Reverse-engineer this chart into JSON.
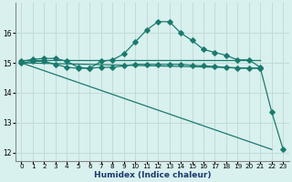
{
  "xlabel": "Humidex (Indice chaleur)",
  "xlim": [
    -0.5,
    23.5
  ],
  "ylim": [
    11.7,
    17.0
  ],
  "yticks": [
    12,
    13,
    14,
    15,
    16
  ],
  "xticks": [
    0,
    1,
    2,
    3,
    4,
    5,
    6,
    7,
    8,
    9,
    10,
    11,
    12,
    13,
    14,
    15,
    16,
    17,
    18,
    19,
    20,
    21,
    22,
    23
  ],
  "background_color": "#d8f0ee",
  "grid_color": "#c0dcd8",
  "line_color": "#1a7a6e",
  "series1_x": [
    0,
    1,
    2,
    3,
    4,
    5,
    6,
    7,
    8,
    9,
    10,
    11,
    12,
    13,
    14,
    15,
    16,
    17,
    18,
    19,
    20,
    21
  ],
  "series1_y": [
    15.05,
    15.12,
    15.15,
    15.15,
    15.05,
    14.85,
    14.82,
    15.05,
    15.1,
    15.3,
    15.7,
    16.1,
    16.38,
    16.38,
    16.0,
    15.75,
    15.45,
    15.35,
    15.25,
    15.1,
    15.1,
    14.85
  ],
  "series2_x": [
    0,
    21
  ],
  "series2_y": [
    15.1,
    15.1
  ],
  "series3_x": [
    0,
    1,
    2,
    3,
    4,
    5,
    6,
    7,
    8,
    9,
    10,
    11,
    12,
    13,
    14,
    15,
    16,
    17,
    18,
    19,
    20,
    21
  ],
  "series3_y": [
    15.0,
    15.05,
    15.05,
    14.95,
    14.85,
    14.82,
    14.82,
    14.85,
    14.85,
    14.9,
    14.95,
    14.95,
    14.95,
    14.95,
    14.95,
    14.92,
    14.9,
    14.88,
    14.85,
    14.82,
    14.82,
    14.82
  ],
  "series4_x": [
    0,
    21,
    22,
    23
  ],
  "series4_y": [
    15.0,
    14.82,
    12.1,
    12.5
  ],
  "series5_x": [
    21,
    22,
    23
  ],
  "series5_y": [
    14.82,
    13.35,
    12.1
  ]
}
